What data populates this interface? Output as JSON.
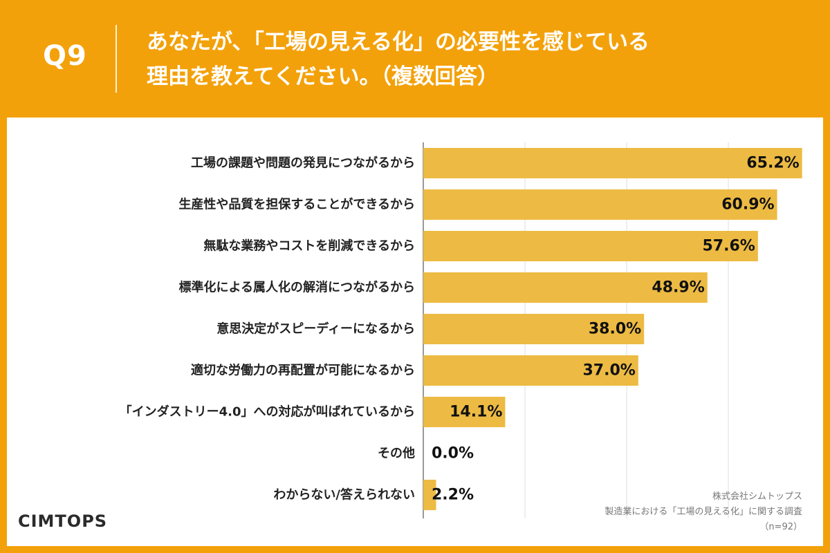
{
  "header": {
    "q_label": "Q9",
    "title_line1": "あなたが、「工場の見える化」の必要性を感じている",
    "title_line2": "理由を教えてください。（複数回答）"
  },
  "footer": {
    "logo": "CIMTOPS",
    "source_line1": "株式会社シムトップス",
    "source_line2": "製造業における「工場の見える化」に関する調査",
    "source_line3": "（n=92）"
  },
  "colors": {
    "background": "#f3a10a",
    "bar": "#edbb43",
    "panel": "#ffffff"
  },
  "chart_data": {
    "type": "bar",
    "orientation": "horizontal",
    "categories": [
      "工場の課題や問題の発見につながるから",
      "生産性や品質を担保することができるから",
      "無駄な業務やコストを削減できるから",
      "標準化による属人化の解消につながるから",
      "意思決定がスピーディーになるから",
      "適切な労働力の再配置が可能になるから",
      "「インダストリー4.0」への対応が叫ばれているから",
      "その他",
      "わからない/答えられない"
    ],
    "values": [
      65.2,
      60.9,
      57.6,
      48.9,
      38.0,
      37.0,
      14.1,
      0.0,
      2.2
    ],
    "value_labels": [
      "65.2%",
      "60.9%",
      "57.6%",
      "48.9%",
      "38.0%",
      "37.0%",
      "14.1%",
      "0.0%",
      "2.2%"
    ],
    "xlim": [
      0,
      70
    ],
    "grid_values": [
      17.5,
      35,
      52.5,
      70
    ],
    "grid": true
  }
}
